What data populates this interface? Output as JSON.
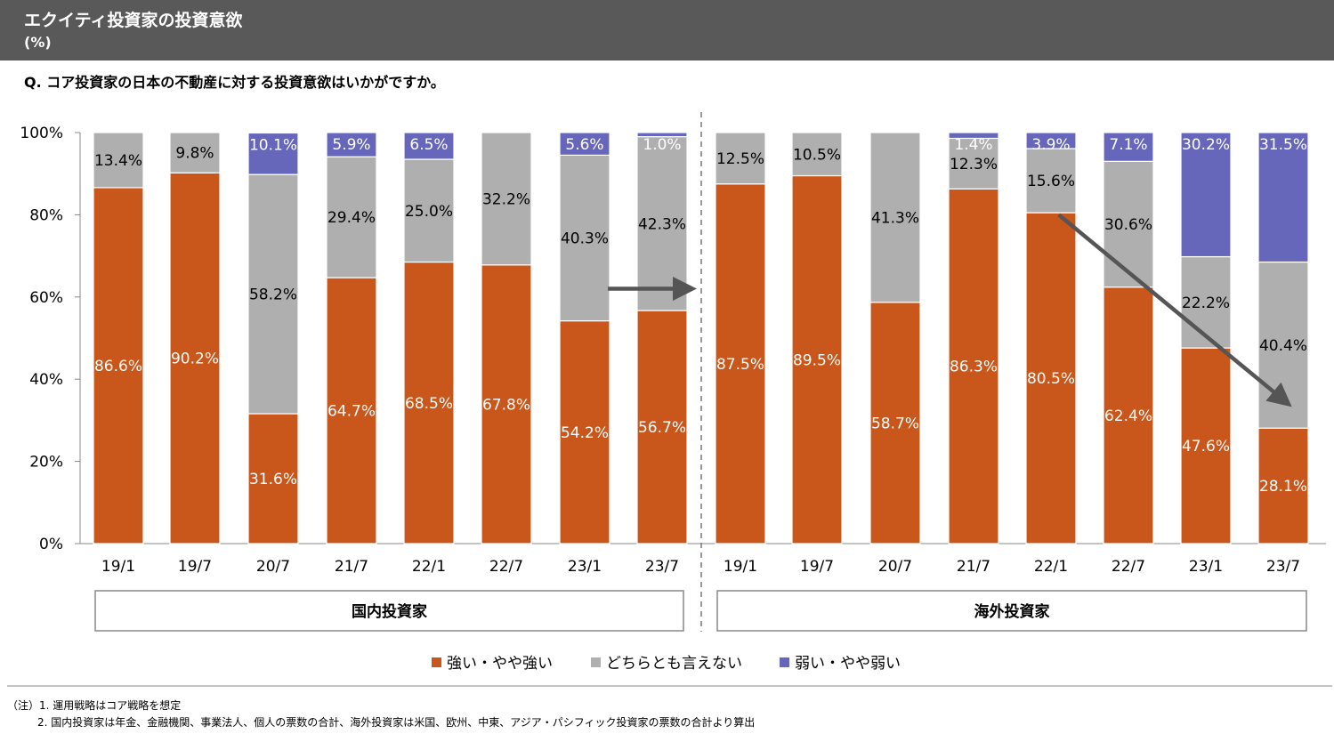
{
  "header": {
    "title": "エクイティ投資家の投資意欲",
    "unit": "(%)"
  },
  "question": "Q. コア投資家の日本の不動産に対する投資意欲はいかがですか。",
  "colors": {
    "strong": "#C9561A",
    "neutral": "#AFAFAF",
    "weak": "#6666BB",
    "arrow": "#555555",
    "header_bg": "#595959"
  },
  "legend": [
    {
      "label": "強い・やや強い",
      "color": "#C9561A"
    },
    {
      "label": "どちらとも言えない",
      "color": "#AFAFAF"
    },
    {
      "label": "弱い・やや弱い",
      "color": "#6666BB"
    }
  ],
  "groups": [
    {
      "label": "国内投資家"
    },
    {
      "label": "海外投資家"
    }
  ],
  "chart_data": {
    "type": "bar",
    "stacked": true,
    "ylim": [
      0,
      100
    ],
    "yticks": [
      "0%",
      "20%",
      "40%",
      "60%",
      "80%",
      "100%"
    ],
    "categories": [
      "19/1",
      "19/7",
      "20/7",
      "21/7",
      "22/1",
      "22/7",
      "23/1",
      "23/7",
      "19/1",
      "19/7",
      "20/7",
      "21/7",
      "22/1",
      "22/7",
      "23/1",
      "23/7"
    ],
    "series": [
      {
        "name": "強い・やや強い",
        "values": [
          86.6,
          90.2,
          31.6,
          64.7,
          68.5,
          67.8,
          54.2,
          56.7,
          87.5,
          89.5,
          58.7,
          86.3,
          80.5,
          62.4,
          47.6,
          28.1
        ],
        "labels": [
          "86.6%",
          "90.2%",
          "31.6%",
          "64.7%",
          "68.5%",
          "67.8%",
          "54.2%",
          "56.7%",
          "87.5%",
          "89.5%",
          "58.7%",
          "86.3%",
          "80.5%",
          "62.4%",
          "47.6%",
          "28.1%"
        ]
      },
      {
        "name": "どちらとも言えない",
        "values": [
          13.4,
          9.8,
          58.2,
          29.4,
          25.0,
          32.2,
          40.3,
          42.3,
          12.5,
          10.5,
          41.3,
          12.3,
          15.6,
          30.6,
          22.2,
          40.4
        ],
        "labels": [
          "13.4%",
          "9.8%",
          "58.2%",
          "29.4%",
          "25.0%",
          "32.2%",
          "40.3%",
          "42.3%",
          "12.5%",
          "10.5%",
          "41.3%",
          "12.3%",
          "15.6%",
          "30.6%",
          "22.2%",
          "40.4%"
        ]
      },
      {
        "name": "弱い・やや弱い",
        "values": [
          0,
          0,
          10.1,
          5.9,
          6.5,
          0,
          5.6,
          1.0,
          0,
          0,
          0,
          1.4,
          3.9,
          7.1,
          30.2,
          31.5
        ],
        "labels": [
          "",
          "",
          "10.1%",
          "5.9%",
          "6.5%",
          "",
          "5.6%",
          "1.0%",
          "",
          "",
          "",
          "1.4%",
          "3.9%",
          "7.1%",
          "30.2%",
          "31.5%"
        ]
      }
    ],
    "annotations": [
      {
        "type": "arrow",
        "from": {
          "category_index": 6.3,
          "y": 62
        },
        "to": {
          "category_index": 7.3,
          "y": 62
        }
      },
      {
        "type": "arrow",
        "from": {
          "category_index": 12.1,
          "y": 80
        },
        "to": {
          "category_index": 15.2,
          "y": 35
        }
      }
    ]
  },
  "notes": [
    "（注）1.  運用戦略はコア戦略を想定",
    "2.  国内投資家は年金、金融機関、事業法人、個人の票数の合計、海外投資家は米国、欧州、中東、アジア・パシフィック投資家の票数の合計より算出"
  ]
}
